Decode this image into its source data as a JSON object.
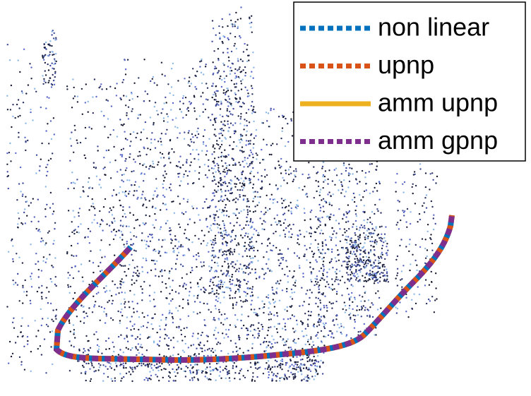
{
  "legend": {
    "entries": [
      {
        "label": "non linear",
        "color": "#0072bd",
        "style": "dotted"
      },
      {
        "label": "upnp",
        "color": "#d95319",
        "style": "dotted"
      },
      {
        "label": "amm upnp",
        "color": "#edb120",
        "style": "solid"
      },
      {
        "label": "amm gpnp",
        "color": "#7e2f8e",
        "style": "dotted"
      }
    ]
  }
}
